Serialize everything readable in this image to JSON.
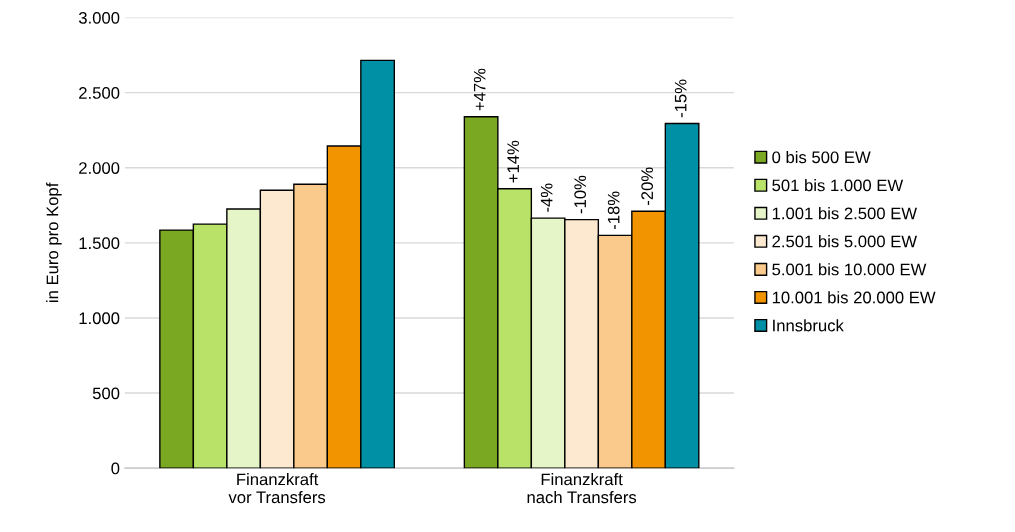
{
  "chart_data": {
    "type": "bar",
    "ylabel": "in Euro pro Kopf",
    "categories": [
      "Finanzkraft\nvor Transfers",
      "Finanzkraft\nnach Transfers"
    ],
    "series": [
      {
        "name": "0 bis 500 EW",
        "color": "#7ba823",
        "values": [
          1585,
          2340
        ]
      },
      {
        "name": "501 bis 1.000 EW",
        "color": "#b9e268",
        "values": [
          1625,
          1860
        ]
      },
      {
        "name": "1.001 bis 2.500 EW",
        "color": "#e6f5c8",
        "values": [
          1725,
          1665
        ]
      },
      {
        "name": "2.501 bis 5.000 EW",
        "color": "#fde8d0",
        "values": [
          1850,
          1655
        ]
      },
      {
        "name": "5.001 bis 10.000 EW",
        "color": "#f9ca8c",
        "values": [
          1890,
          1550
        ]
      },
      {
        "name": "10.001 bis 20.000 EW",
        "color": "#f29400",
        "values": [
          2145,
          1710
        ]
      },
      {
        "name": "Innsbruck",
        "color": "#0090a6",
        "values": [
          2715,
          2295
        ]
      }
    ],
    "annotations": [
      "+47%",
      "+14%",
      "-4%",
      "-10%",
      "-18%",
      "-20%",
      "-15%"
    ],
    "ylim": [
      0,
      3000
    ],
    "yticks": [
      0,
      500,
      {
        "value": 1000,
        "label": "1.000"
      },
      {
        "value": 1500,
        "label": "1.500"
      },
      {
        "value": 2000,
        "label": "2.000"
      },
      {
        "value": 2500,
        "label": "2.500"
      },
      {
        "value": 3000,
        "label": "3.000"
      }
    ],
    "grid": "y",
    "legend": "right"
  }
}
